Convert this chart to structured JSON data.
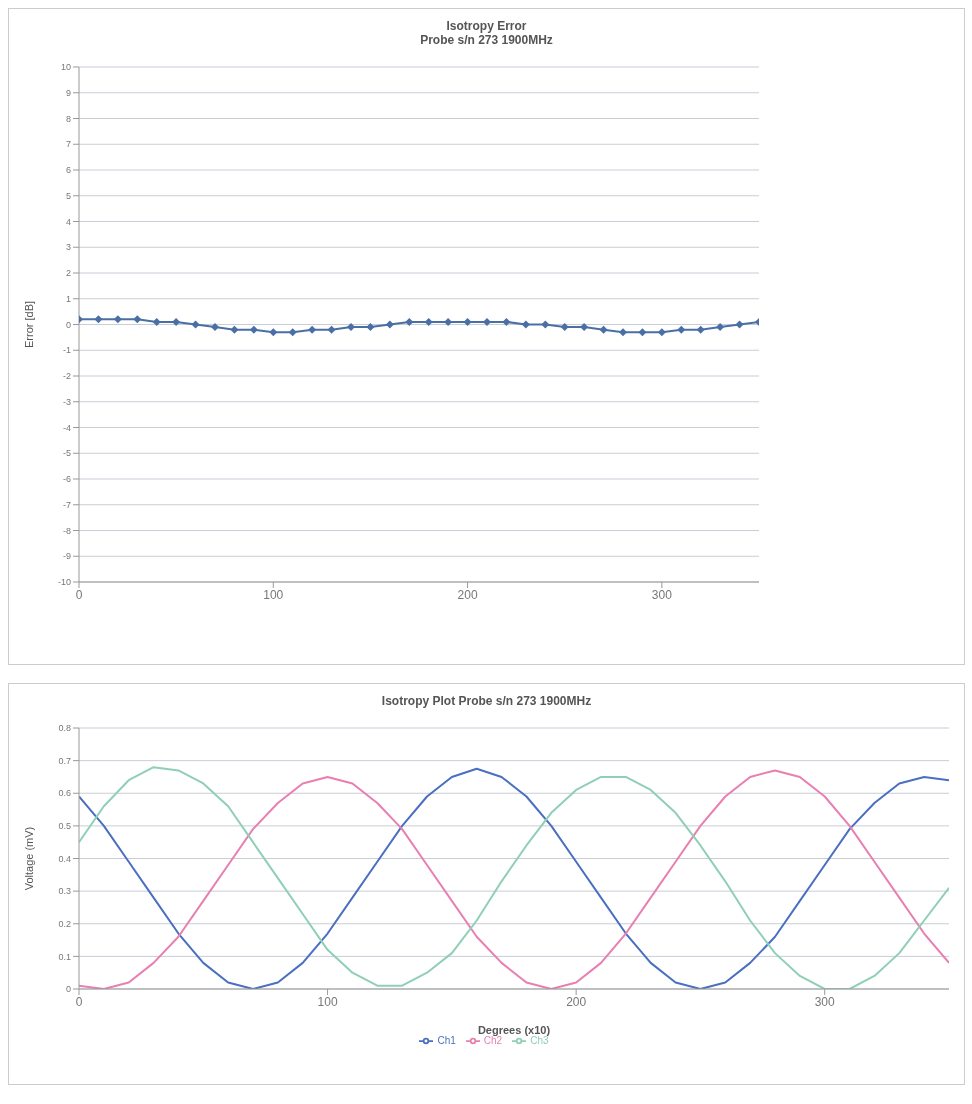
{
  "chart_data": [
    {
      "type": "line",
      "title": "Isotropy Error",
      "subtitle": "Probe s/n 273 1900MHz",
      "ylabel": "Error [dB]",
      "x": [
        0,
        10,
        20,
        30,
        40,
        50,
        60,
        70,
        80,
        90,
        100,
        110,
        120,
        130,
        140,
        150,
        160,
        170,
        180,
        190,
        200,
        210,
        220,
        230,
        240,
        250,
        260,
        270,
        280,
        290,
        300,
        310,
        320,
        330,
        340,
        350
      ],
      "series": [
        {
          "color": "#4a6fa5",
          "values": [
            0.2,
            0.2,
            0.2,
            0.2,
            0.1,
            0.1,
            0,
            -0.1,
            -0.2,
            -0.2,
            -0.3,
            -0.3,
            -0.2,
            -0.2,
            -0.1,
            -0.1,
            0,
            0.1,
            0.1,
            0.1,
            0.1,
            0.1,
            0.1,
            0,
            0,
            -0.1,
            -0.1,
            -0.2,
            -0.3,
            -0.3,
            -0.3,
            -0.2,
            -0.2,
            -0.1,
            0,
            0.1
          ]
        }
      ],
      "xlim": [
        0,
        350
      ],
      "xticks": [
        0,
        100,
        200,
        300
      ],
      "ylim": [
        -10,
        10
      ],
      "yticks": [
        -10,
        -9,
        -8,
        -7,
        -6,
        -5,
        -4,
        -3,
        -2,
        -1,
        0,
        1,
        2,
        3,
        4,
        5,
        6,
        7,
        8,
        9,
        10
      ],
      "grid": "y",
      "marker": "diamond",
      "line_style": "solid",
      "legend": false
    },
    {
      "type": "line",
      "title": "Isotropy Plot Probe s/n 273 1900MHz",
      "xlabel": "Degrees (x10)",
      "ylabel": "Voltage (mV)",
      "x": [
        0,
        10,
        20,
        30,
        40,
        50,
        60,
        70,
        80,
        90,
        100,
        110,
        120,
        130,
        140,
        150,
        160,
        170,
        180,
        190,
        200,
        210,
        220,
        230,
        240,
        250,
        260,
        270,
        280,
        290,
        300,
        310,
        320,
        330,
        340,
        350
      ],
      "series": [
        {
          "name": "Ch1",
          "color": "#4a6fc0",
          "values": [
            0.59,
            0.5,
            0.39,
            0.28,
            0.17,
            0.08,
            0.02,
            0,
            0.02,
            0.08,
            0.17,
            0.28,
            0.39,
            0.5,
            0.59,
            0.65,
            0.675,
            0.65,
            0.59,
            0.5,
            0.39,
            0.28,
            0.17,
            0.08,
            0.02,
            0,
            0.02,
            0.08,
            0.16,
            0.27,
            0.38,
            0.49,
            0.57,
            0.63,
            0.65,
            0.64
          ]
        },
        {
          "name": "Ch2",
          "color": "#e87fb0",
          "values": [
            0.01,
            0,
            0.02,
            0.08,
            0.16,
            0.27,
            0.38,
            0.49,
            0.57,
            0.63,
            0.65,
            0.63,
            0.57,
            0.49,
            0.38,
            0.27,
            0.16,
            0.08,
            0.02,
            0,
            0.02,
            0.08,
            0.17,
            0.28,
            0.39,
            0.5,
            0.59,
            0.65,
            0.67,
            0.65,
            0.59,
            0.5,
            0.39,
            0.28,
            0.17,
            0.08
          ]
        },
        {
          "name": "Ch3",
          "color": "#8fcfb5",
          "values": [
            0.45,
            0.56,
            0.64,
            0.68,
            0.67,
            0.63,
            0.56,
            0.45,
            0.34,
            0.23,
            0.12,
            0.05,
            0.01,
            0.01,
            0.05,
            0.11,
            0.21,
            0.33,
            0.44,
            0.54,
            0.61,
            0.65,
            0.65,
            0.61,
            0.54,
            0.44,
            0.33,
            0.21,
            0.11,
            0.04,
            0,
            0,
            0.04,
            0.11,
            0.21,
            0.31
          ]
        }
      ],
      "xlim": [
        0,
        350
      ],
      "xticks": [
        0,
        100,
        200,
        300
      ],
      "ylim": [
        0,
        0.8
      ],
      "yticks": [
        0,
        0.1,
        0.2,
        0.3,
        0.4,
        0.5,
        0.6,
        0.7,
        0.8
      ],
      "grid": "y",
      "marker": "none",
      "line_style": "solid",
      "legend": "bottom"
    }
  ]
}
